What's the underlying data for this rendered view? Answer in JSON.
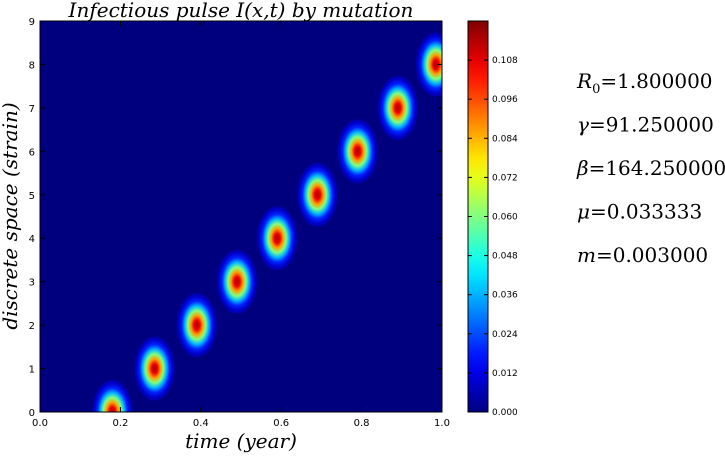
{
  "chart_data": {
    "type": "heatmap",
    "title": "Infectious pulse I(x,t) by mutation",
    "xlabel": "time (year)",
    "ylabel": "discrete space (strain)",
    "xlim": [
      0.0,
      1.0
    ],
    "ylim": [
      0,
      9
    ],
    "xticks": [
      "0.0",
      "0.2",
      "0.4",
      "0.6",
      "0.8",
      "1.0"
    ],
    "yticks": [
      "0",
      "1",
      "2",
      "3",
      "4",
      "5",
      "6",
      "7",
      "8",
      "9"
    ],
    "colormap": "jet",
    "colorbar": {
      "min": 0.0,
      "max": 0.12,
      "ticks": [
        "0.000",
        "0.012",
        "0.024",
        "0.036",
        "0.048",
        "0.060",
        "0.072",
        "0.084",
        "0.096",
        "0.108"
      ]
    },
    "pulses": [
      {
        "strain": 0,
        "time": 0.18,
        "peak": 0.115
      },
      {
        "strain": 1,
        "time": 0.285,
        "peak": 0.115
      },
      {
        "strain": 2,
        "time": 0.39,
        "peak": 0.115
      },
      {
        "strain": 3,
        "time": 0.49,
        "peak": 0.115
      },
      {
        "strain": 4,
        "time": 0.59,
        "peak": 0.115
      },
      {
        "strain": 5,
        "time": 0.69,
        "peak": 0.115
      },
      {
        "strain": 6,
        "time": 0.79,
        "peak": 0.115
      },
      {
        "strain": 7,
        "time": 0.89,
        "peak": 0.115
      },
      {
        "strain": 8,
        "time": 0.985,
        "peak": 0.115
      }
    ]
  },
  "parameters": [
    {
      "symbol": "R",
      "subscript": "0",
      "value": "=1.800000"
    },
    {
      "symbol": "γ",
      "subscript": "",
      "value": "=91.250000"
    },
    {
      "symbol": "β",
      "subscript": "",
      "value": "=164.250000"
    },
    {
      "symbol": "μ",
      "subscript": "",
      "value": "=0.033333"
    },
    {
      "symbol": "m",
      "subscript": "",
      "value": "=0.003000"
    }
  ]
}
